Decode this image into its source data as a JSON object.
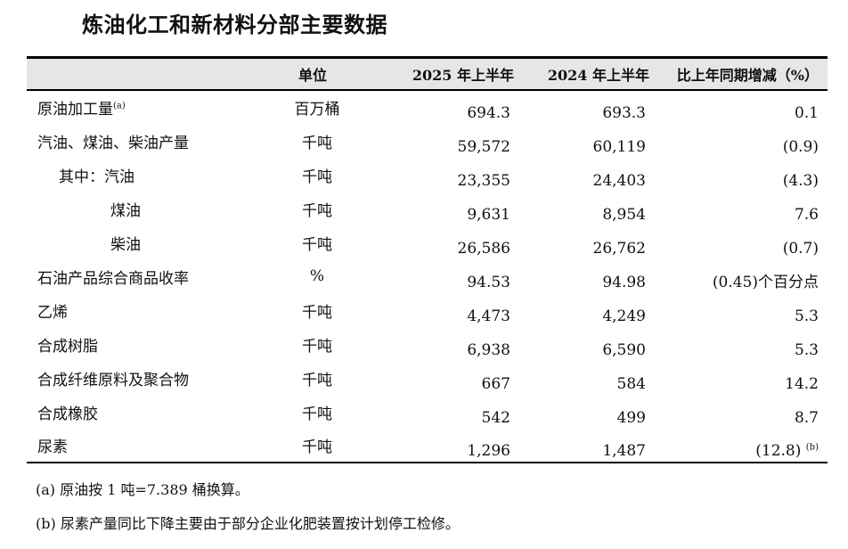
{
  "title": "炼油化工和新材料分部主要数据",
  "headers": {
    "item": "",
    "unit": "单位",
    "y2025": "2025 年上半年",
    "y2024": "2024 年上半年",
    "change": "比上年同期增减（%）"
  },
  "rows": [
    {
      "item": "原油加工量",
      "sup": "(a)",
      "unit": "百万桶",
      "y2025": "694.3",
      "y2024": "693.3",
      "change": "0.1",
      "change_sup": ""
    },
    {
      "item": "汽油、煤油、柴油产量",
      "sup": "",
      "unit": "千吨",
      "y2025": "59,572",
      "y2024": "60,119",
      "change": "(0.9)",
      "change_sup": ""
    },
    {
      "item": "其中：汽油",
      "sup": "",
      "unit": "千吨",
      "y2025": "23,355",
      "y2024": "24,403",
      "change": "(4.3)",
      "change_sup": ""
    },
    {
      "item": "煤油",
      "sup": "",
      "unit": "千吨",
      "y2025": "9,631",
      "y2024": "8,954",
      "change": "7.6",
      "change_sup": ""
    },
    {
      "item": "柴油",
      "sup": "",
      "unit": "千吨",
      "y2025": "26,586",
      "y2024": "26,762",
      "change": "(0.7)",
      "change_sup": ""
    },
    {
      "item": "石油产品综合商品收率",
      "sup": "",
      "unit": "%",
      "y2025": "94.53",
      "y2024": "94.98",
      "change": "(0.45)个百分点",
      "change_sup": ""
    },
    {
      "item": "乙烯",
      "sup": "",
      "unit": "千吨",
      "y2025": "4,473",
      "y2024": "4,249",
      "change": "5.3",
      "change_sup": ""
    },
    {
      "item": "合成树脂",
      "sup": "",
      "unit": "千吨",
      "y2025": "6,938",
      "y2024": "6,590",
      "change": "5.3",
      "change_sup": ""
    },
    {
      "item": "合成纤维原料及聚合物",
      "sup": "",
      "unit": "千吨",
      "y2025": "667",
      "y2024": "584",
      "change": "14.2",
      "change_sup": ""
    },
    {
      "item": "合成橡胶",
      "sup": "",
      "unit": "千吨",
      "y2025": "542",
      "y2024": "499",
      "change": "8.7",
      "change_sup": ""
    },
    {
      "item": "尿素",
      "sup": "",
      "unit": "千吨",
      "y2025": "1,296",
      "y2024": "1,487",
      "change": "(12.8)",
      "change_sup": "(b)"
    }
  ],
  "notes": [
    "(a)  原油按 1 吨=7.389 桶换算。",
    "(b)  尿素产量同比下降主要由于部分企业化肥装置按计划停工检修。"
  ]
}
